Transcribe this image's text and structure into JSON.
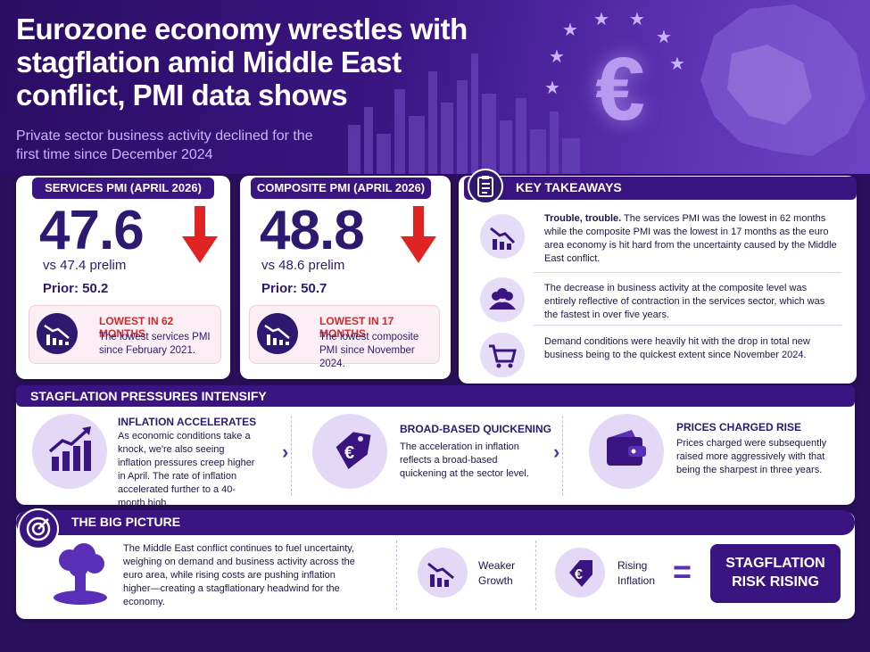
{
  "header": {
    "title": "Eurozone economy wrestles with stagflation amid Middle East conflict, PMI data shows",
    "subtitle": "Private sector business activity declined for the first time since December 2024"
  },
  "services": {
    "label": "SERVICES PMI (APRIL 2026)",
    "value": "47.6",
    "prelim": "vs 47.4 prelim",
    "prior": "Prior: 50.2",
    "alert_title": "LOWEST IN 62 MONTHS",
    "alert_text": "The lowest services PMI since February 2021."
  },
  "composite": {
    "label": "COMPOSITE PMI (APRIL 2026)",
    "value": "48.8",
    "prelim": "vs 48.6 prelim",
    "prior": "Prior: 50.7",
    "alert_title": "LOWEST IN 17 MONTHS",
    "alert_text": "The lowest composite PMI since November 2024."
  },
  "takeaways": {
    "title": "KEY TAKEAWAYS",
    "items": [
      {
        "lead": "Trouble, trouble.",
        "text": " The services PMI was the lowest in 62 months while the composite PMI was the lowest in 17 months as the euro area economy is hit hard from the uncertainty caused by the Middle East conflict.",
        "icon": "chart-down-icon"
      },
      {
        "lead": "",
        "text": "The decrease in business activity at the composite level was entirely reflective of contraction in the services sector, which was the fastest in over five years.",
        "icon": "people-icon"
      },
      {
        "lead": "",
        "text": "Demand conditions were heavily hit with the drop in total new business being to the quickest extent since November 2024.",
        "icon": "cart-icon"
      }
    ]
  },
  "stagflation": {
    "title": "STAGFLATION PRESSURES INTENSIFY",
    "items": [
      {
        "title": "INFLATION ACCELERATES",
        "text": "As economic conditions take a knock, we're also seeing inflation pressures creep higher in April. The rate of inflation accelerated further to a 40-month high.",
        "icon": "chart-up-icon"
      },
      {
        "title": "BROAD-BASED QUICKENING",
        "text": "The acceleration in inflation reflects a broad-based quickening at the sector level.",
        "icon": "euro-tag-icon"
      },
      {
        "title": "PRICES CHARGED RISE",
        "text": "Prices charged were subsequently raised more aggressively with that being the sharpest in three years.",
        "icon": "wallet-icon"
      }
    ]
  },
  "big_picture": {
    "title": "THE BIG PICTURE",
    "text": "The Middle East conflict continues to fuel uncertainty, weighing on demand and business activity across the euro area, while rising costs are pushing inflation higher—creating a stagflationary headwind for the economy.",
    "weaker": "Weaker Growth",
    "rising": "Rising Inflation",
    "equals": "=",
    "result": "STAGFLATION RISK RISING"
  },
  "colors": {
    "navy": "#3a1582",
    "accent": "#5a2fb8",
    "alert_red": "#d22a2a",
    "arrow_red": "#e02424"
  }
}
